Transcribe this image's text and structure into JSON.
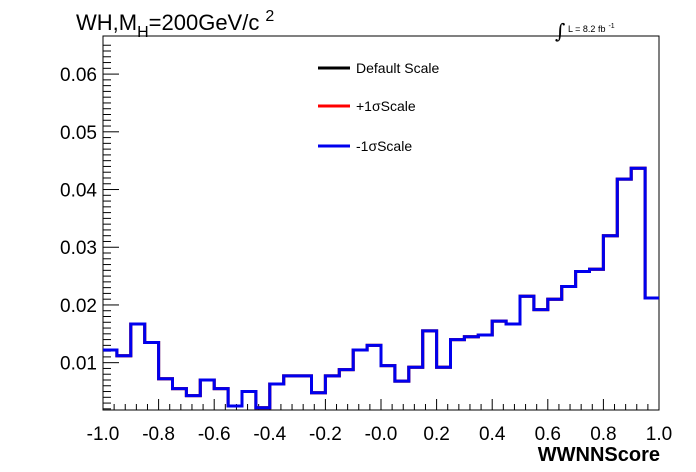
{
  "chart_data": {
    "type": "line",
    "title_parts": {
      "main": "WH,M",
      "sub": "H",
      "rest": "=200GeV/c",
      "sup": "2"
    },
    "lumi_label": {
      "integral": "∫",
      "text": "L = 8.2 fb",
      "sup": "-1"
    },
    "xlabel": "WWNNScore",
    "ylabel": "",
    "xlim": [
      -1.0,
      1.0
    ],
    "ylim": [
      0.0018,
      0.0666
    ],
    "x_ticks": [
      -1.0,
      -0.8,
      -0.6,
      -0.4,
      -0.2,
      0.0,
      0.2,
      0.4,
      0.6,
      0.8,
      1.0
    ],
    "x_tick_labels": [
      "-1.0",
      "-0.8",
      "-0.6",
      "-0.4",
      "-0.2",
      "-0.0",
      "0.2",
      "0.4",
      "0.6",
      "0.8",
      "1.0"
    ],
    "y_ticks": [
      0.01,
      0.02,
      0.03,
      0.04,
      0.05,
      0.06
    ],
    "y_tick_labels": [
      "0.01",
      "0.02",
      "0.03",
      "0.04",
      "0.05",
      "0.06"
    ],
    "bin_edges": [
      -1.0,
      -0.95,
      -0.9,
      -0.85,
      -0.8,
      -0.75,
      -0.7,
      -0.65,
      -0.6,
      -0.55,
      -0.5,
      -0.45,
      -0.4,
      -0.35,
      -0.3,
      -0.25,
      -0.2,
      -0.15,
      -0.1,
      -0.05,
      0.0,
      0.05,
      0.1,
      0.15,
      0.2,
      0.25,
      0.3,
      0.35,
      0.4,
      0.45,
      0.5,
      0.55,
      0.6,
      0.65,
      0.7,
      0.75,
      0.8,
      0.85,
      0.9,
      0.95,
      1.0
    ],
    "series": [
      {
        "name": "Default Scale",
        "color": "#000000",
        "values": [
          0.0122,
          0.0112,
          0.0167,
          0.0135,
          0.0072,
          0.0055,
          0.0043,
          0.007,
          0.0055,
          0.0025,
          0.005,
          0.0022,
          0.0063,
          0.0077,
          0.0077,
          0.0048,
          0.0077,
          0.0088,
          0.0122,
          0.013,
          0.0095,
          0.0068,
          0.0092,
          0.0155,
          0.0092,
          0.014,
          0.0145,
          0.0148,
          0.0172,
          0.0167,
          0.0215,
          0.0192,
          0.021,
          0.0232,
          0.0258,
          0.0262,
          0.032,
          0.0418,
          0.0437,
          0.0212
        ]
      },
      {
        "name": "+1σScale",
        "color": "#ff0000",
        "values": [
          0.0122,
          0.0112,
          0.0167,
          0.0135,
          0.0072,
          0.0055,
          0.0043,
          0.007,
          0.0055,
          0.0025,
          0.005,
          0.0022,
          0.0063,
          0.0077,
          0.0077,
          0.0048,
          0.0077,
          0.0088,
          0.0122,
          0.013,
          0.0095,
          0.0068,
          0.0092,
          0.0155,
          0.0092,
          0.014,
          0.0145,
          0.0148,
          0.0172,
          0.0167,
          0.0215,
          0.0192,
          0.021,
          0.0232,
          0.0258,
          0.0262,
          0.032,
          0.0418,
          0.0437,
          0.0212
        ]
      },
      {
        "name": "-1σScale",
        "color": "#0000ee",
        "values": [
          0.0122,
          0.0112,
          0.0167,
          0.0135,
          0.0072,
          0.0055,
          0.0043,
          0.007,
          0.0055,
          0.0025,
          0.005,
          0.0022,
          0.0063,
          0.0077,
          0.0077,
          0.0048,
          0.0077,
          0.0088,
          0.0122,
          0.013,
          0.0095,
          0.0068,
          0.0092,
          0.0155,
          0.0092,
          0.014,
          0.0145,
          0.0148,
          0.0172,
          0.0167,
          0.0215,
          0.0192,
          0.021,
          0.0232,
          0.0258,
          0.0262,
          0.032,
          0.0418,
          0.0437,
          0.0212
        ]
      }
    ],
    "legend_placement": "top-center",
    "grid": false
  }
}
